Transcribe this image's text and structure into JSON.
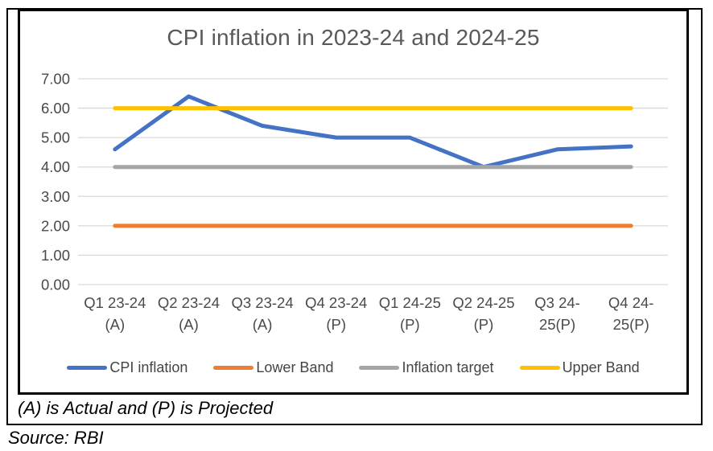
{
  "chart_data": {
    "type": "line",
    "title": "CPI inflation in 2023-24 and 2024-25",
    "categories": [
      {
        "line1": "Q1 23-24",
        "line2": "(A)"
      },
      {
        "line1": "Q2 23-24",
        "line2": "(A)"
      },
      {
        "line1": "Q3 23-24",
        "line2": "(A)"
      },
      {
        "line1": "Q4 23-24",
        "line2": "(P)"
      },
      {
        "line1": "Q1 24-25",
        "line2": "(P)"
      },
      {
        "line1": "Q2 24-25",
        "line2": "(P)"
      },
      {
        "line1": "Q3 24-",
        "line2": "25(P)"
      },
      {
        "line1": "Q4 24-",
        "line2": "25(P)"
      }
    ],
    "series": [
      {
        "name": "CPI inflation",
        "color": "#4472C4",
        "values": [
          4.6,
          6.4,
          5.4,
          5.0,
          5.0,
          4.0,
          4.6,
          4.7
        ]
      },
      {
        "name": "Lower Band",
        "color": "#ED7D31",
        "values": [
          2.0,
          2.0,
          2.0,
          2.0,
          2.0,
          2.0,
          2.0,
          2.0
        ]
      },
      {
        "name": "Inflation target",
        "color": "#A5A5A5",
        "values": [
          4.0,
          4.0,
          4.0,
          4.0,
          4.0,
          4.0,
          4.0,
          4.0
        ]
      },
      {
        "name": "Upper Band",
        "color": "#FFC000",
        "values": [
          6.0,
          6.0,
          6.0,
          6.0,
          6.0,
          6.0,
          6.0,
          6.0
        ]
      }
    ],
    "ylim": [
      0,
      7
    ],
    "ytick_step": 1,
    "ytick_labels": [
      "0.00",
      "1.00",
      "2.00",
      "3.00",
      "4.00",
      "5.00",
      "6.00",
      "7.00"
    ],
    "grid": true,
    "gridline_color": "#D9D9D9",
    "legend_position": "bottom"
  },
  "footnote": "(A) is Actual and (P) is Projected",
  "source": "Source: RBI"
}
